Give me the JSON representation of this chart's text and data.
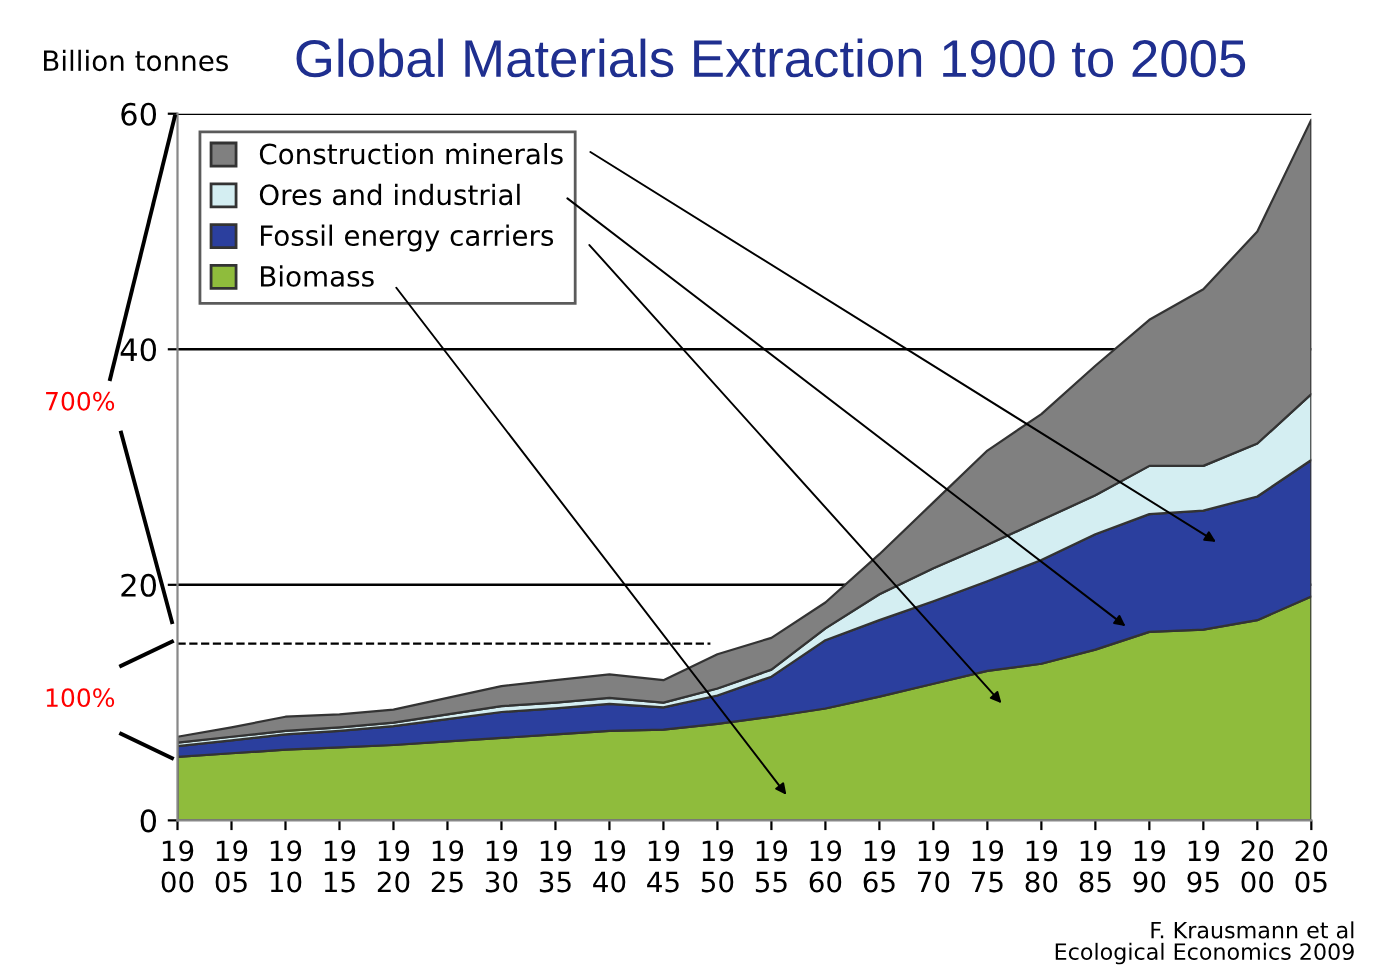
{
  "chart_data": {
    "type": "area",
    "stacked": true,
    "title": "Global Materials Extraction 1900 to 2005",
    "ylabel": "Billion tonnes",
    "categories": [
      "19\n00",
      "19\n05",
      "19\n10",
      "19\n15",
      "19\n20",
      "19\n25",
      "19\n30",
      "19\n35",
      "19\n40",
      "19\n45",
      "19\n50",
      "19\n55",
      "19\n60",
      "19\n65",
      "19\n70",
      "19\n75",
      "19\n80",
      "19\n85",
      "19\n90",
      "19\n95",
      "20\n00",
      "20\n05"
    ],
    "series": [
      {
        "name": "Biomass",
        "color": "#8fbc3c",
        "values": [
          5.4,
          5.7,
          6.0,
          6.2,
          6.4,
          6.7,
          7.0,
          7.3,
          7.6,
          7.7,
          8.2,
          8.8,
          9.5,
          10.5,
          11.6,
          12.7,
          13.3,
          14.5,
          16.0,
          16.2,
          17.0,
          19.0
        ]
      },
      {
        "name": "Fossil energy carriers",
        "color": "#2b3f9e",
        "values": [
          0.9,
          1.1,
          1.3,
          1.4,
          1.6,
          1.9,
          2.2,
          2.2,
          2.3,
          1.9,
          2.4,
          3.4,
          5.8,
          6.5,
          7.0,
          7.6,
          8.8,
          9.8,
          10.0,
          10.1,
          10.5,
          11.6
        ]
      },
      {
        "name": "Ores and industrial",
        "color": "#d4eef2",
        "values": [
          0.3,
          0.3,
          0.3,
          0.3,
          0.3,
          0.4,
          0.5,
          0.5,
          0.5,
          0.4,
          0.6,
          0.6,
          1.0,
          2.2,
          2.8,
          3.1,
          3.4,
          3.3,
          4.1,
          3.8,
          4.5,
          5.6
        ]
      },
      {
        "name": "Construction minerals",
        "color": "#808080",
        "values": [
          0.5,
          0.8,
          1.2,
          1.1,
          1.1,
          1.4,
          1.7,
          1.9,
          2.0,
          1.9,
          2.9,
          2.7,
          2.2,
          3.4,
          5.6,
          8.0,
          9.0,
          11.0,
          12.4,
          15.0,
          18.0,
          23.3
        ]
      }
    ],
    "ylim": [
      0,
      60
    ],
    "yticks": [
      0,
      20,
      40,
      60
    ],
    "grid": "y",
    "legend": "top left",
    "ref_lines": [
      {
        "axis": "y",
        "value": 15,
        "line_style": "dashed",
        "color": "#000000"
      }
    ],
    "annotations": [
      "700%",
      "100%",
      "F. Krausmann et al\nEcological Economics 2009"
    ]
  }
}
